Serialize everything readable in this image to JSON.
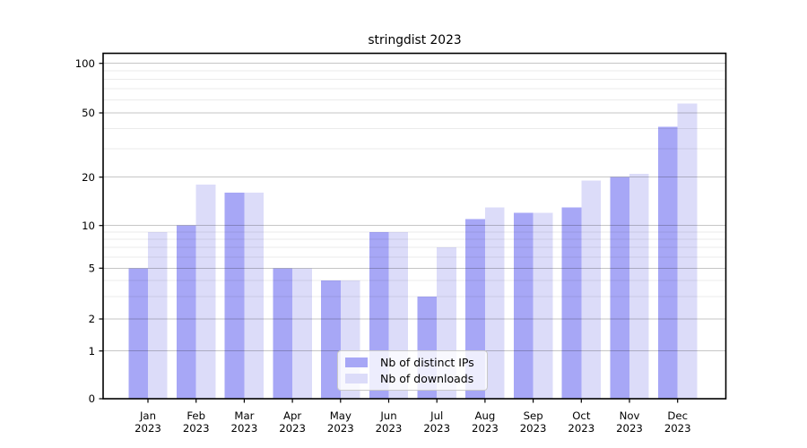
{
  "figure": {
    "title": "stringdist 2023"
  },
  "colors": {
    "ips_bar": "#a7a7f6",
    "downloads_bar": "#dcdcf9",
    "grid_major": "#c6c6c6",
    "grid_minor": "#ebebeb",
    "axis": "#000000",
    "legend_border": "#c9c9c9"
  },
  "chart_data": {
    "type": "bar",
    "title": "stringdist 2023",
    "categories": [
      "Jan",
      "Feb",
      "Mar",
      "Apr",
      "May",
      "Jun",
      "Jul",
      "Aug",
      "Sep",
      "Oct",
      "Nov",
      "Dec"
    ],
    "x_tick_year": "2023",
    "series": [
      {
        "name": "Nb of distinct IPs",
        "color": "#a7a7f6",
        "values": [
          5,
          10,
          16,
          5,
          4,
          9,
          3,
          11,
          12,
          13,
          20,
          41
        ]
      },
      {
        "name": "Nb of downloads",
        "color": "#dcdcf9",
        "values": [
          9,
          18,
          16,
          5,
          4,
          9,
          7,
          13,
          12,
          19,
          21,
          57
        ]
      }
    ],
    "y_axis": {
      "scale": "symlog",
      "major_ticks": [
        0,
        1,
        2,
        5,
        10,
        20,
        50,
        100
      ],
      "minor_ticks": [
        3,
        4,
        6,
        7,
        8,
        9,
        30,
        40,
        60,
        70,
        80,
        90
      ]
    },
    "grid": true,
    "legend_position": "lower center"
  }
}
